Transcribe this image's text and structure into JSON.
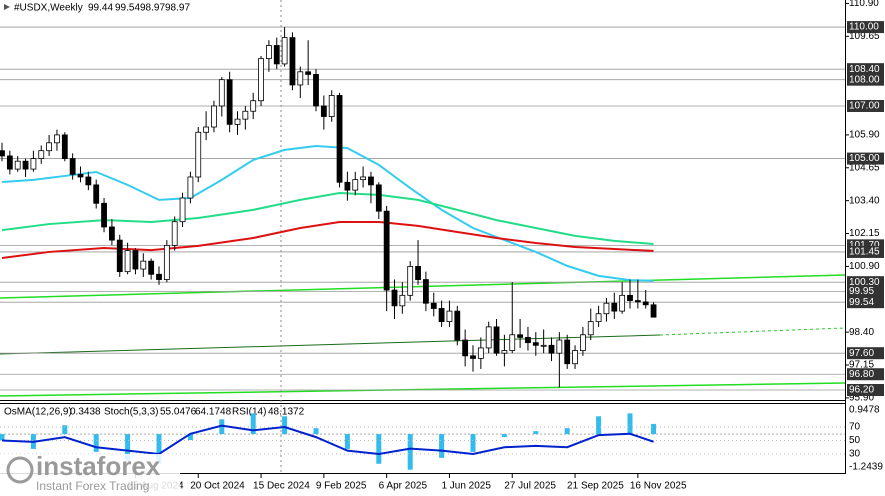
{
  "chart_data": {
    "type": "candlestick",
    "symbol": "#USDX,Weekly",
    "categories": [
      null,
      null,
      null,
      null,
      null,
      null,
      null,
      null,
      null,
      null,
      null,
      null,
      null,
      null,
      null,
      null,
      null,
      "25 Aug 2024",
      null,
      null,
      null,
      null,
      null,
      null,
      null,
      "20 Oct 2024",
      null,
      null,
      null,
      null,
      null,
      null,
      null,
      "15 Dec 2024",
      null,
      null,
      null,
      null,
      null,
      null,
      null,
      "9 Feb 2025",
      null,
      null,
      null,
      null,
      null,
      null,
      null,
      "6 Apr 2025",
      null,
      null,
      null,
      null,
      null,
      null,
      null,
      "1 Jun 2025",
      null,
      null,
      null,
      null,
      null,
      null,
      null,
      "27 Jul 2025",
      null,
      null,
      null,
      null,
      null,
      null,
      null,
      "21 Sep 2025",
      null,
      null,
      null,
      null,
      null,
      null,
      null,
      "16 Nov 2025",
      null,
      null
    ],
    "candles": [
      [
        105.3,
        105.6,
        104.9,
        105.1
      ],
      [
        105.1,
        105.3,
        104.4,
        104.6
      ],
      [
        104.6,
        105.1,
        104.5,
        104.9
      ],
      [
        104.9,
        105.0,
        104.3,
        104.6
      ],
      [
        104.6,
        105.3,
        104.5,
        105.0
      ],
      [
        105.0,
        105.5,
        104.8,
        105.3
      ],
      [
        105.3,
        105.9,
        105.1,
        105.6
      ],
      [
        105.6,
        106.1,
        105.3,
        105.9
      ],
      [
        105.9,
        106.0,
        104.9,
        105.0
      ],
      [
        105.0,
        105.2,
        104.2,
        104.4
      ],
      [
        104.4,
        104.7,
        104.1,
        104.3
      ],
      [
        104.3,
        104.5,
        103.8,
        104.0
      ],
      [
        104.0,
        104.2,
        103.1,
        103.3
      ],
      [
        103.3,
        103.5,
        102.2,
        102.4
      ],
      [
        102.4,
        102.7,
        101.7,
        101.9
      ],
      [
        101.9,
        102.1,
        100.5,
        100.7
      ],
      [
        100.7,
        101.8,
        100.6,
        101.5
      ],
      [
        101.5,
        101.6,
        100.6,
        100.8
      ],
      [
        100.8,
        101.4,
        100.5,
        101.1
      ],
      [
        101.1,
        101.2,
        100.4,
        100.6
      ],
      [
        100.6,
        100.9,
        100.2,
        100.4
      ],
      [
        100.4,
        101.9,
        100.3,
        101.7
      ],
      [
        101.7,
        102.8,
        101.5,
        102.6
      ],
      [
        102.6,
        103.7,
        102.4,
        103.5
      ],
      [
        103.5,
        104.5,
        103.3,
        104.3
      ],
      [
        104.3,
        106.2,
        104.1,
        106.0
      ],
      [
        106.0,
        106.8,
        105.7,
        106.2
      ],
      [
        106.2,
        107.2,
        106.0,
        107.0
      ],
      [
        107.0,
        108.1,
        106.6,
        108.0
      ],
      [
        108.0,
        108.3,
        106.0,
        106.3
      ],
      [
        106.3,
        106.8,
        105.9,
        106.5
      ],
      [
        106.5,
        107.0,
        106.1,
        106.8
      ],
      [
        106.8,
        107.5,
        106.5,
        107.2
      ],
      [
        107.2,
        108.9,
        107.0,
        108.8
      ],
      [
        108.8,
        109.5,
        108.3,
        109.3
      ],
      [
        109.3,
        109.6,
        108.4,
        108.6
      ],
      [
        108.6,
        110.0,
        108.5,
        109.6
      ],
      [
        109.6,
        109.8,
        107.6,
        107.8
      ],
      [
        107.8,
        108.5,
        107.3,
        108.3
      ],
      [
        108.3,
        109.5,
        107.8,
        108.2
      ],
      [
        108.2,
        108.4,
        106.8,
        107.0
      ],
      [
        107.0,
        107.4,
        106.1,
        106.6
      ],
      [
        106.6,
        107.6,
        106.4,
        107.4
      ],
      [
        107.4,
        107.5,
        103.9,
        104.1
      ],
      [
        104.1,
        104.5,
        103.4,
        103.8
      ],
      [
        103.8,
        104.5,
        103.6,
        104.2
      ],
      [
        104.2,
        104.7,
        103.9,
        104.3
      ],
      [
        104.3,
        104.5,
        103.3,
        104.0
      ],
      [
        104.0,
        104.1,
        102.7,
        103.0
      ],
      [
        103.0,
        103.2,
        99.2,
        100.0
      ],
      [
        100.0,
        100.4,
        98.9,
        99.4
      ],
      [
        99.4,
        100.3,
        99.1,
        99.8
      ],
      [
        99.8,
        101.1,
        99.6,
        100.9
      ],
      [
        100.9,
        101.9,
        100.2,
        100.4
      ],
      [
        100.4,
        100.7,
        99.2,
        99.5
      ],
      [
        99.5,
        99.9,
        99.0,
        99.3
      ],
      [
        99.3,
        99.6,
        98.6,
        98.8
      ],
      [
        98.8,
        99.6,
        98.6,
        99.2
      ],
      [
        99.2,
        99.4,
        97.9,
        98.1
      ],
      [
        98.1,
        98.5,
        97.1,
        97.5
      ],
      [
        97.5,
        97.9,
        96.9,
        97.4
      ],
      [
        97.4,
        98.2,
        97.0,
        97.8
      ],
      [
        97.8,
        98.8,
        97.6,
        98.6
      ],
      [
        98.6,
        98.9,
        97.5,
        97.6
      ],
      [
        97.6,
        98.3,
        97.1,
        97.7
      ],
      [
        97.7,
        100.3,
        97.6,
        98.3
      ],
      [
        98.3,
        98.9,
        97.8,
        98.2
      ],
      [
        98.2,
        98.6,
        97.7,
        98.0
      ],
      [
        98.0,
        98.4,
        97.5,
        97.9
      ],
      [
        97.9,
        98.5,
        97.6,
        97.9
      ],
      [
        97.9,
        98.2,
        97.3,
        97.6
      ],
      [
        97.6,
        98.4,
        96.3,
        98.1
      ],
      [
        98.1,
        98.3,
        97.0,
        97.2
      ],
      [
        97.2,
        97.9,
        97.0,
        97.7
      ],
      [
        97.7,
        98.6,
        97.5,
        98.3
      ],
      [
        98.3,
        99.3,
        98.1,
        98.8
      ],
      [
        98.8,
        99.4,
        98.6,
        99.1
      ],
      [
        99.1,
        99.7,
        98.8,
        99.5
      ],
      [
        99.5,
        99.9,
        98.9,
        99.2
      ],
      [
        99.2,
        100.3,
        99.1,
        99.8
      ],
      [
        99.8,
        100.4,
        99.3,
        99.6
      ],
      [
        99.6,
        100.4,
        99.3,
        99.55
      ],
      [
        99.55,
        100.0,
        99.3,
        99.44
      ],
      [
        99.44,
        99.54,
        98.97,
        98.97
      ]
    ],
    "series": [
      {
        "color": "#33ccee",
        "x": [
          0,
          4,
          8,
          12,
          16,
          20,
          24,
          28,
          32,
          36,
          40,
          44,
          48,
          52,
          56,
          60,
          64,
          68,
          72,
          76,
          80,
          83
        ],
        "values": [
          104.11,
          104.19,
          104.34,
          104.49,
          104.0,
          103.43,
          103.5,
          104.19,
          104.95,
          105.33,
          105.48,
          105.4,
          104.76,
          103.88,
          103.05,
          102.36,
          101.9,
          101.45,
          100.92,
          100.54,
          100.38,
          100.35
        ]
      },
      {
        "color": "#22dd88",
        "x": [
          0,
          6,
          13,
          19,
          25,
          32,
          38,
          43,
          48,
          53,
          58,
          63,
          68,
          73,
          78,
          83
        ],
        "values": [
          102.28,
          102.51,
          102.66,
          102.59,
          102.74,
          103.05,
          103.43,
          103.69,
          103.62,
          103.43,
          103.05,
          102.66,
          102.36,
          102.06,
          101.87,
          101.75
        ]
      },
      {
        "color": "#dd1111",
        "x": [
          0,
          6,
          13,
          19,
          25,
          32,
          38,
          43,
          48,
          53,
          58,
          63,
          68,
          73,
          78,
          83
        ],
        "values": [
          101.22,
          101.45,
          101.6,
          101.52,
          101.68,
          101.98,
          102.36,
          102.59,
          102.59,
          102.44,
          102.21,
          101.98,
          101.79,
          101.64,
          101.56,
          101.49
        ]
      }
    ],
    "ylim": [
      95.82,
      111.03
    ],
    "yticks": [
      {
        "value": 110.9,
        "label": "110.90"
      },
      109.65,
      {
        "value": 105.9,
        "label": "105.90"
      },
      104.65,
      {
        "value": 103.4,
        "label": "103.40"
      },
      102.15,
      {
        "value": 100.9,
        "label": "100.90"
      },
      {
        "value": 98.4,
        "label": "98.40"
      },
      97.15,
      {
        "value": 95.9,
        "label": "95.90"
      }
    ],
    "levels": [
      {
        "value": 110,
        "label": "110.00"
      },
      {
        "value": 108.4,
        "label": "108.40"
      },
      {
        "value": 108,
        "label": "108.00"
      },
      {
        "value": 107,
        "label": "107.00"
      },
      {
        "value": 105,
        "label": "105.00"
      },
      {
        "value": 101.7,
        "label": "101.70"
      },
      101.45,
      {
        "value": 100.3,
        "label": "100.30"
      },
      99.95,
      99.54,
      {
        "value": 97.6,
        "label": "97.60"
      },
      {
        "value": 96.8,
        "label": "96.80"
      },
      {
        "value": 96.2,
        "label": "96.20"
      }
    ],
    "osma": {
      "name": "OsMA(12,26,9)",
      "color": "#33bbee",
      "x": [
        0,
        4,
        8,
        12,
        16,
        20,
        24,
        28,
        32,
        36,
        40,
        44,
        48,
        52,
        56,
        60,
        64,
        68,
        72,
        76,
        80,
        83
      ],
      "values": [
        -0.2,
        -0.5,
        0.3,
        -0.6,
        -0.9,
        -1.0,
        -0.2,
        0.5,
        0.7,
        0.6,
        0.2,
        -0.5,
        -1.0,
        -1.2,
        -0.8,
        -0.6,
        -0.1,
        0.1,
        0.2,
        0.6,
        0.7,
        0.3438
      ],
      "ylim": [
        -1.2439,
        0.9478
      ]
    },
    "stoch": {
      "name": "Stoch(5,3,3)",
      "values": [
        55.0476,
        64.1748
      ]
    },
    "rsi": {
      "name": "RSI(14)",
      "color": "#0022cc",
      "x": [
        0,
        4,
        8,
        12,
        16,
        20,
        24,
        28,
        32,
        36,
        40,
        44,
        48,
        52,
        56,
        60,
        64,
        68,
        72,
        76,
        80,
        83
      ],
      "values": [
        50,
        48,
        55,
        40,
        35,
        30,
        60,
        72,
        65,
        70,
        55,
        35,
        30,
        38,
        35,
        30,
        40,
        42,
        40,
        58,
        60,
        48.1372
      ],
      "ylim": [
        4.8,
        101.1
      ],
      "yticks": [
        70,
        50,
        30
      ]
    },
    "logo": {
      "name": "instaforex",
      "tagline": "Instant Forex Trading"
    }
  }
}
